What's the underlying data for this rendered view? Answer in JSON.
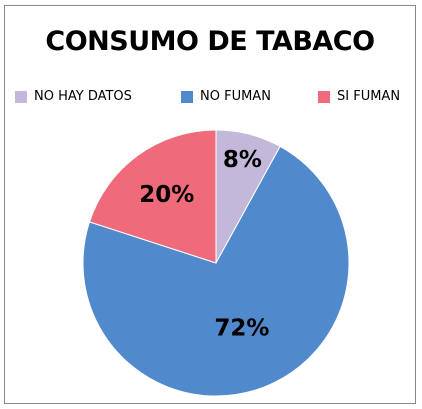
{
  "chart_data": {
    "type": "pie",
    "title": "CONSUMO DE TABACO",
    "legend_position": "top",
    "slices": [
      {
        "name": "NO HAY DATOS",
        "value": 8,
        "label": "8%",
        "color": "#C3B8D9"
      },
      {
        "name": "NO FUMAN",
        "value": 72,
        "label": "72%",
        "color": "#508ACD"
      },
      {
        "name": "SI FUMAN",
        "value": 20,
        "label": "20%",
        "color": "#EF6B7C"
      }
    ]
  }
}
